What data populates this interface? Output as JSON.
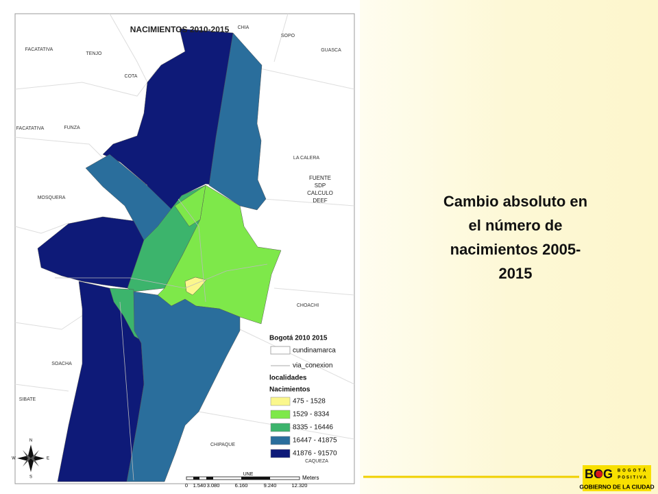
{
  "map": {
    "title": "NACIMIENTOS 2010-2015",
    "places": [
      "CHIA",
      "SOPO",
      "GUASCA",
      "FACATATIVA",
      "TENJO",
      "COTA",
      "FACATATIVA",
      "FUNZA",
      "LA CALERA",
      "MOSQUERA",
      "CHOACHI",
      "SOACHA",
      "SIBATE",
      "CHIPAQUE",
      "CAQUEZA"
    ],
    "note": [
      "FUENTE",
      "SDP",
      "CALCULO",
      "DEEF"
    ],
    "road_label": "UNE",
    "legend": {
      "title": "Bogotá 2010 2015",
      "layers": [
        "cundinamarca",
        "via_conexion"
      ],
      "group": "localidades",
      "field": "Nacimientos",
      "classes": [
        {
          "label": "475 - 1528",
          "color": "#fbf78c"
        },
        {
          "label": "1529 - 8334",
          "color": "#7ee84a"
        },
        {
          "label": "8335 - 16446",
          "color": "#3cb46c"
        },
        {
          "label": "16447 - 41875",
          "color": "#2a6e9c"
        },
        {
          "label": "41876 - 91570",
          "color": "#0e1a78"
        }
      ]
    },
    "compass": [
      "N",
      "S",
      "W",
      "E"
    ],
    "scale": {
      "unit": "Meters",
      "ticks": [
        "0",
        "1.540",
        "3.080",
        "6.160",
        "9.240",
        "12.320"
      ]
    }
  },
  "caption": [
    "Cambio absoluto en",
    "el número de",
    "nacimientos 2005-",
    "2015"
  ],
  "logo": {
    "mark": "BOG",
    "motto": [
      "BOGOTÁ",
      "POSITIVA"
    ],
    "name": "GOBIERNO DE LA CIUDAD"
  }
}
